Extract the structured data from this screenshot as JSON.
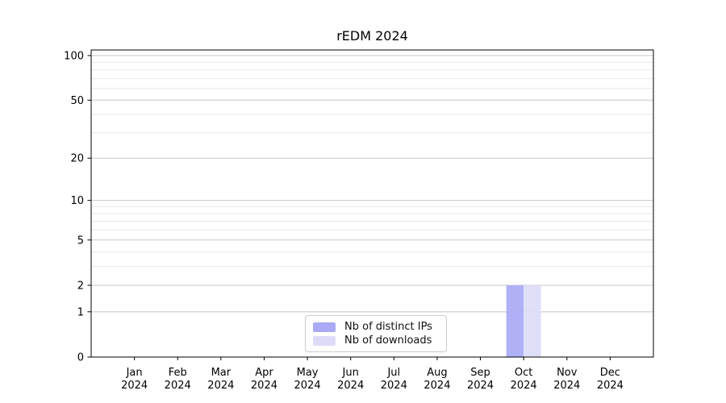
{
  "title": "rEDM 2024",
  "chart_data": {
    "type": "bar",
    "title": "rEDM 2024",
    "x_tick_labels": [
      {
        "month": "Jan",
        "year": "2024"
      },
      {
        "month": "Feb",
        "year": "2024"
      },
      {
        "month": "Mar",
        "year": "2024"
      },
      {
        "month": "Apr",
        "year": "2024"
      },
      {
        "month": "May",
        "year": "2024"
      },
      {
        "month": "Jun",
        "year": "2024"
      },
      {
        "month": "Jul",
        "year": "2024"
      },
      {
        "month": "Aug",
        "year": "2024"
      },
      {
        "month": "Sep",
        "year": "2024"
      },
      {
        "month": "Oct",
        "year": "2024"
      },
      {
        "month": "Nov",
        "year": "2024"
      },
      {
        "month": "Dec",
        "year": "2024"
      }
    ],
    "series": [
      {
        "name": "Nb of distinct IPs",
        "color": "#a9a9f6",
        "values": [
          0,
          0,
          0,
          0,
          0,
          0,
          0,
          0,
          0,
          2,
          0,
          0
        ]
      },
      {
        "name": "Nb of downloads",
        "color": "#dcdcf9",
        "values": [
          0,
          0,
          0,
          0,
          0,
          0,
          0,
          0,
          0,
          2,
          0,
          0
        ]
      }
    ],
    "yscale": "log1p",
    "ylim": [
      0,
      109
    ],
    "y_major_ticks": [
      0,
      1,
      2,
      5,
      10,
      20,
      50,
      100
    ],
    "y_minor_gridlines": [
      3,
      4,
      6,
      7,
      8,
      9,
      30,
      40,
      60,
      70,
      80,
      90
    ],
    "grid": true,
    "legend_position": "lower center",
    "xlabel": "",
    "ylabel": ""
  },
  "colors": {
    "background": "#ffffff",
    "axis": "#000000",
    "grid_major": "#c8c8c8",
    "grid_minor": "#eaeaea",
    "legend_border": "#cccccc",
    "text": "#000000"
  }
}
